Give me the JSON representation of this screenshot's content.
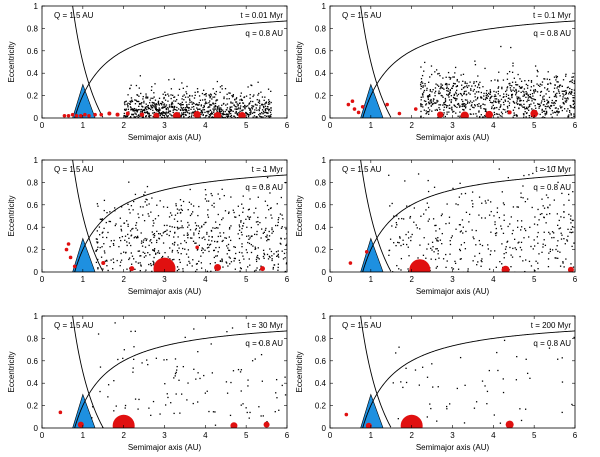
{
  "chart_data": {
    "type": "scatter",
    "layout": "3 rows x 2 columns of panels",
    "xlabel": "Semimajor axis (AU)",
    "ylabel": "Eccentricity",
    "xlim": [
      0,
      6
    ],
    "ylim": [
      0,
      1
    ],
    "xticks": [
      "0",
      "1",
      "2",
      "3",
      "4",
      "5",
      "6"
    ],
    "yticks": [
      "0",
      "0.2",
      "0.4",
      "0.6",
      "0.8",
      "1"
    ],
    "curve_labels": {
      "Q": "Q = 1.5 AU",
      "q": "q = 0.8 AU"
    },
    "curves": {
      "Q_AU": 1.5,
      "q_AU": 0.8
    },
    "triangle": {
      "apex_a": 1.0,
      "apex_e": 0.3,
      "base_a": [
        0.75,
        1.3
      ],
      "color": "#1e90e0"
    },
    "colors": {
      "planetesimal": "#000000",
      "embryo": "#e01010",
      "triangle": "#1e90e0",
      "curve": "#000000"
    },
    "panels": [
      {
        "time_label": "t = 0.01 Myr",
        "planetesimals": {
          "count": 900,
          "a_range": [
            2.0,
            5.6
          ],
          "e_center": 0.06,
          "e_spread": 0.28
        },
        "embryos": [
          [
            0.55,
            0.02,
            1.8
          ],
          [
            0.65,
            0.02,
            1.8
          ],
          [
            0.75,
            0.03,
            1.8
          ],
          [
            0.85,
            0.02,
            1.8
          ],
          [
            0.95,
            0.02,
            1.8
          ],
          [
            1.05,
            0.03,
            1.8
          ],
          [
            1.15,
            0.02,
            1.8
          ],
          [
            1.3,
            0.03,
            1.8
          ],
          [
            1.45,
            0.03,
            1.8
          ],
          [
            1.65,
            0.04,
            2
          ],
          [
            1.85,
            0.03,
            2
          ],
          [
            2.1,
            0.04,
            2
          ],
          [
            2.45,
            0.03,
            2.2
          ],
          [
            2.8,
            0.02,
            3
          ],
          [
            3.3,
            0.02,
            3.8
          ],
          [
            3.8,
            0.03,
            3.6
          ],
          [
            4.3,
            0.02,
            3.8
          ],
          [
            4.9,
            0.02,
            3.8
          ]
        ]
      },
      {
        "time_label": "t = 0.1 Myr",
        "planetesimals": {
          "count": 850,
          "a_range": [
            2.2,
            6.0
          ],
          "e_center": 0.18,
          "e_spread": 0.35
        },
        "embryos": [
          [
            0.45,
            0.12,
            1.8
          ],
          [
            0.55,
            0.15,
            1.8
          ],
          [
            0.6,
            0.08,
            1.8
          ],
          [
            0.7,
            0.05,
            1.8
          ],
          [
            0.8,
            0.1,
            1.8
          ],
          [
            1.4,
            0.12,
            1.8
          ],
          [
            1.7,
            0.04,
            1.8
          ],
          [
            2.1,
            0.08,
            1.8
          ],
          [
            2.7,
            0.03,
            3.2
          ],
          [
            3.3,
            0.02,
            4.2
          ],
          [
            3.9,
            0.03,
            3.8
          ],
          [
            4.4,
            0.05,
            2
          ],
          [
            5.0,
            0.04,
            3.8
          ]
        ]
      },
      {
        "time_label": "t = 1 Myr",
        "planetesimals": {
          "count": 650,
          "a_range": [
            1.3,
            6.0
          ],
          "e_center": 0.3,
          "e_spread": 0.6
        },
        "embryos": [
          [
            0.6,
            0.2,
            1.8
          ],
          [
            0.7,
            0.13,
            1.8
          ],
          [
            0.65,
            0.25,
            1.8
          ],
          [
            0.8,
            0.05,
            1.8
          ],
          [
            1.5,
            0.08,
            2
          ],
          [
            2.2,
            0.03,
            2.5
          ],
          [
            3.0,
            0.03,
            11
          ],
          [
            3.8,
            0.22,
            1.8
          ],
          [
            4.3,
            0.04,
            3.5
          ],
          [
            5.4,
            0.03,
            2.5
          ]
        ]
      },
      {
        "time_label": "t = 10 Myr",
        "planetesimals": {
          "count": 380,
          "a_range": [
            1.4,
            6.0
          ],
          "e_center": 0.35,
          "e_spread": 0.7
        },
        "embryos": [
          [
            0.5,
            0.08,
            1.8
          ],
          [
            0.9,
            0.18,
            1.8
          ],
          [
            2.2,
            0.02,
            10.5
          ],
          [
            4.3,
            0.02,
            4
          ],
          [
            5.9,
            0.02,
            3
          ]
        ]
      },
      {
        "time_label": "t = 30 Myr",
        "planetesimals": {
          "count": 110,
          "a_range": [
            1.2,
            6.0
          ],
          "e_center": 0.4,
          "e_spread": 0.7
        },
        "embryos": [
          [
            0.45,
            0.14,
            1.8
          ],
          [
            0.95,
            0.03,
            3
          ],
          [
            2.0,
            0.02,
            11
          ],
          [
            4.7,
            0.02,
            3.5
          ],
          [
            5.5,
            0.03,
            3
          ]
        ]
      },
      {
        "time_label": "t = 200 Myr",
        "planetesimals": {
          "count": 55,
          "a_range": [
            1.5,
            6.0
          ],
          "e_center": 0.4,
          "e_spread": 0.7
        },
        "embryos": [
          [
            0.4,
            0.12,
            1.8
          ],
          [
            0.95,
            0.02,
            3
          ],
          [
            2.0,
            0.02,
            11
          ],
          [
            4.4,
            0.03,
            4
          ]
        ]
      }
    ]
  }
}
